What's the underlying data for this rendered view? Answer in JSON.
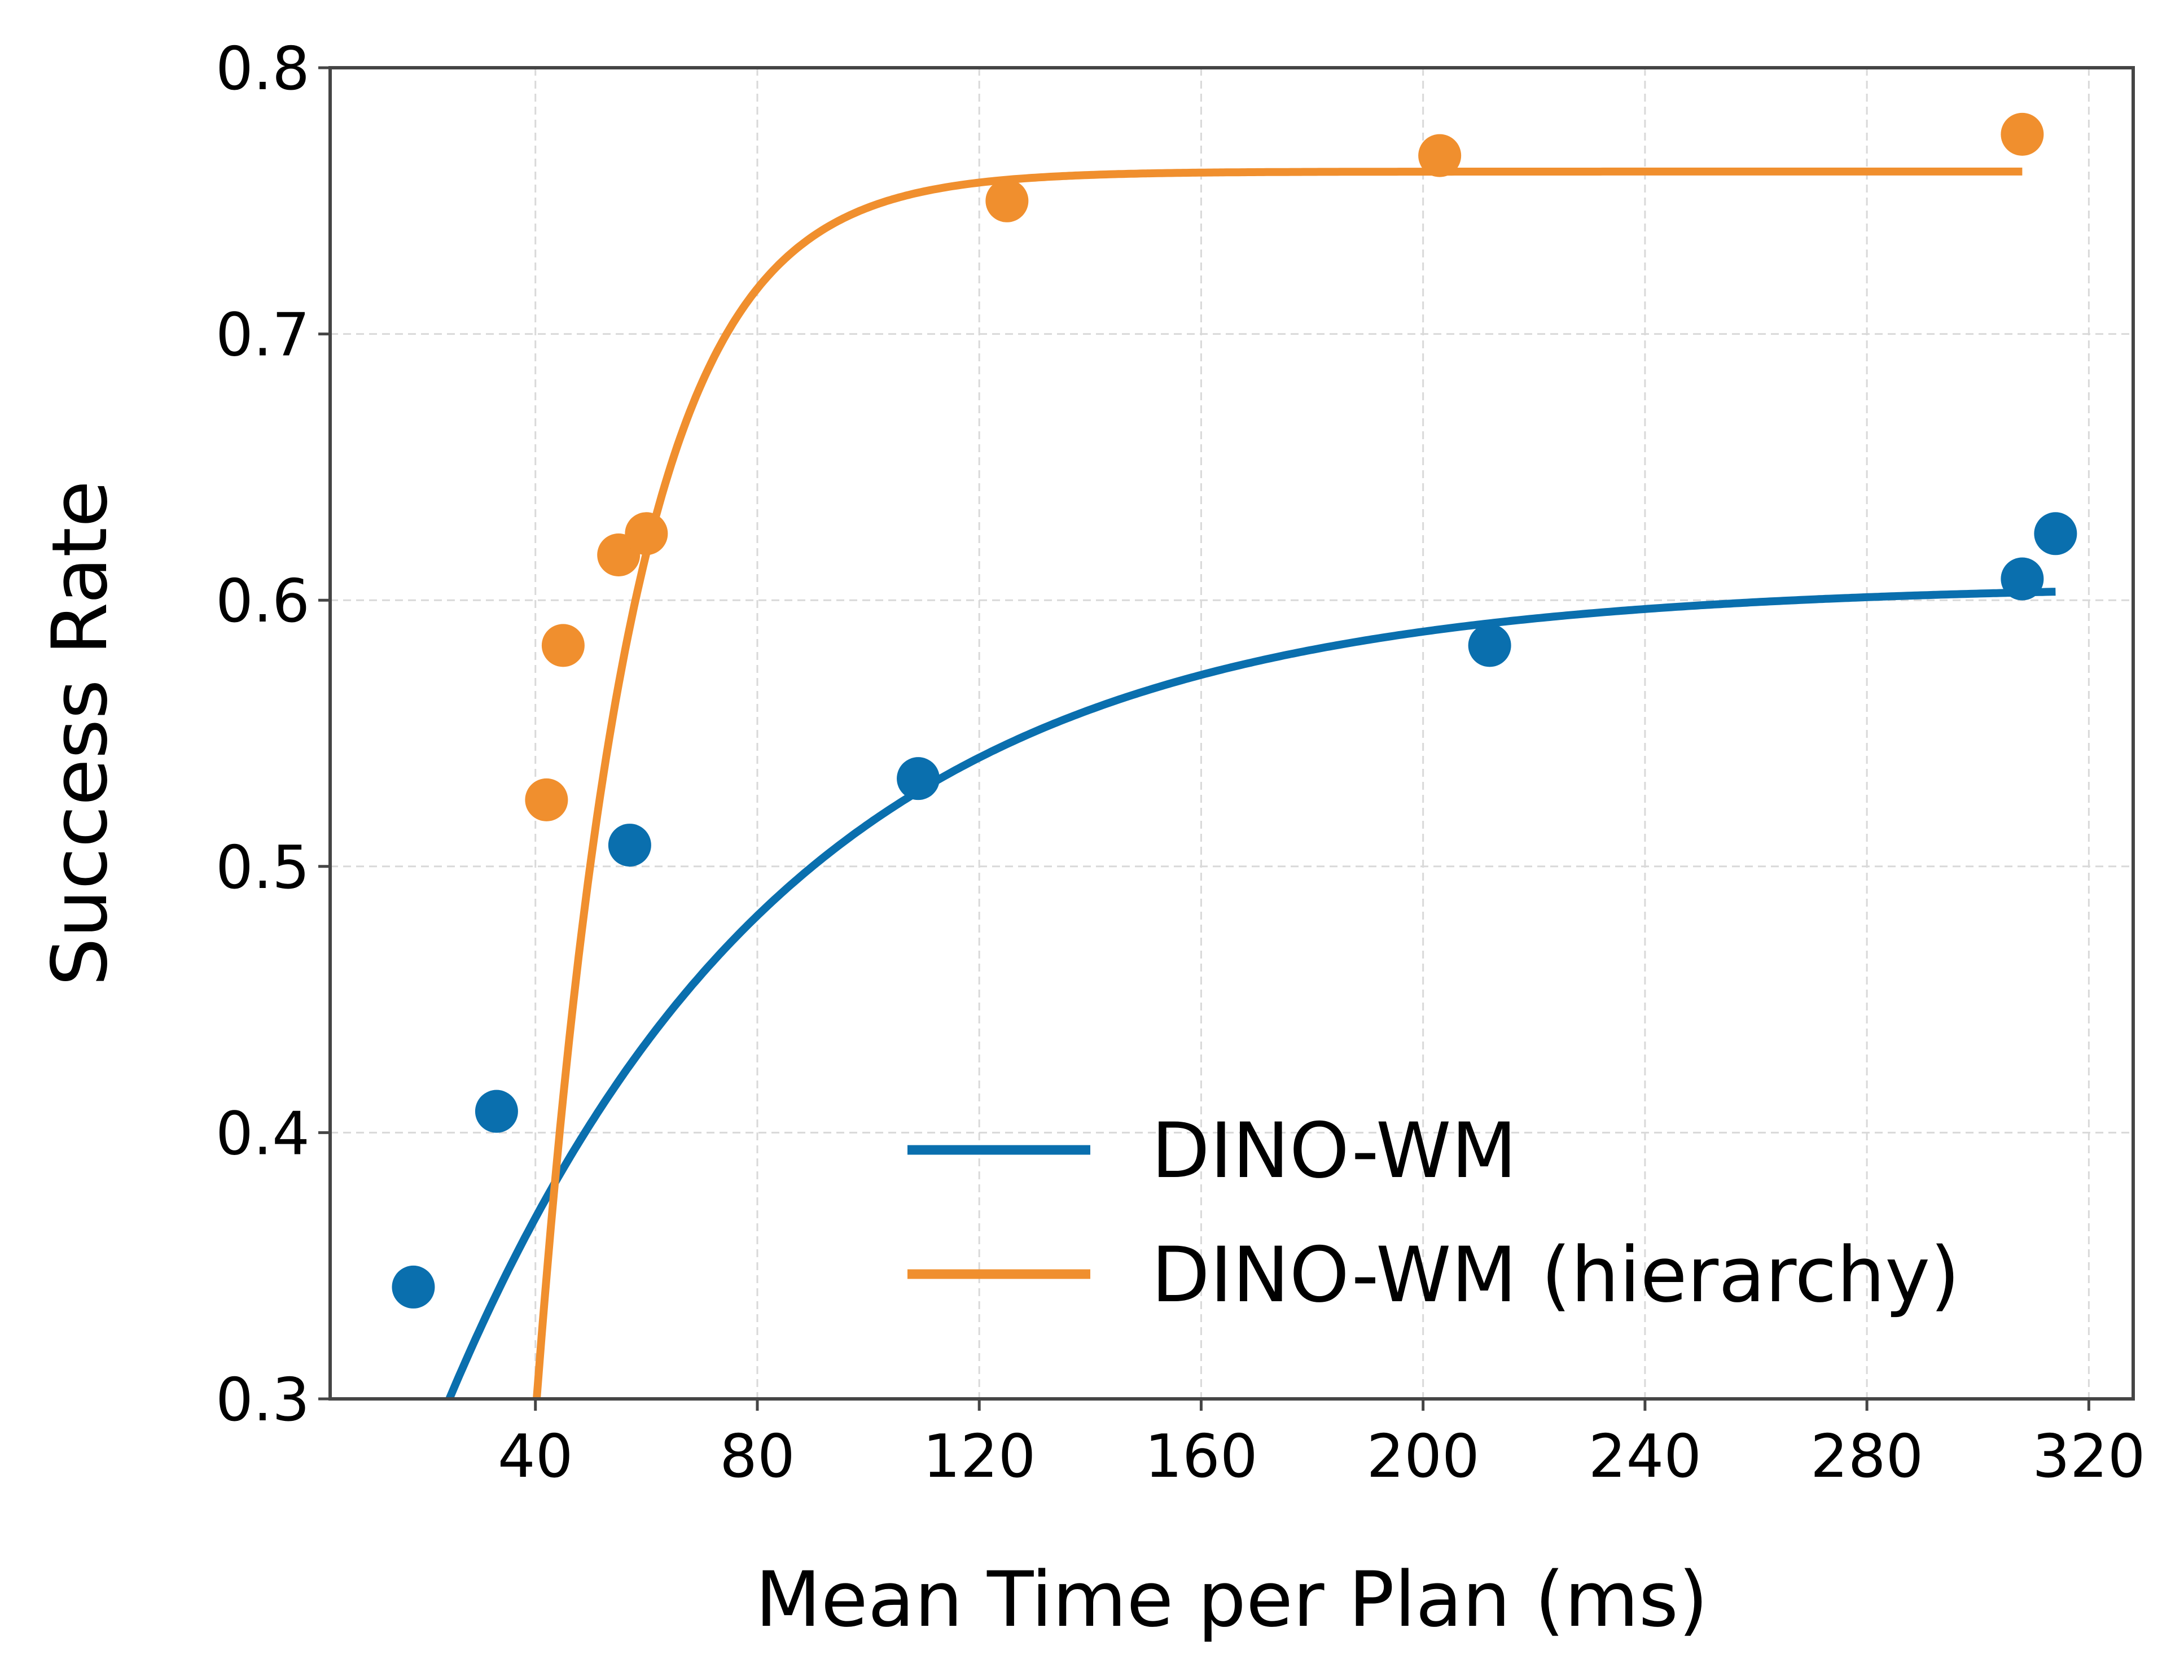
{
  "chart_data": {
    "type": "scatter",
    "title": "",
    "xlabel": "Mean Time per Plan (ms)",
    "ylabel": "Success Rate",
    "xlim": [
      3,
      328
    ],
    "ylim": [
      0.3,
      0.8
    ],
    "xticks": [
      40,
      80,
      120,
      160,
      200,
      240,
      280,
      320
    ],
    "xtick_labels": [
      "40",
      "80",
      "120",
      "160",
      "200",
      "240",
      "280",
      "320"
    ],
    "yticks": [
      0.3,
      0.4,
      0.5,
      0.6,
      0.7,
      0.8
    ],
    "ytick_labels": [
      "0.3",
      "0.4",
      "0.5",
      "0.6",
      "0.7",
      "0.8"
    ],
    "grid": true,
    "legend_position": "lower-right",
    "series": [
      {
        "name": "DINO-WM",
        "color": "#0a6fae",
        "points": [
          {
            "x": 18,
            "y": 0.342
          },
          {
            "x": 33,
            "y": 0.408
          },
          {
            "x": 57,
            "y": 0.508
          },
          {
            "x": 109,
            "y": 0.533
          },
          {
            "x": 212,
            "y": 0.583
          },
          {
            "x": 308,
            "y": 0.608
          },
          {
            "x": 314,
            "y": 0.625
          }
        ],
        "fit": {
          "model": "exponential-saturation",
          "a": 0.606,
          "b": 0.455,
          "c": 0.0162,
          "x_start": 18,
          "x_end": 314
        }
      },
      {
        "name": "DINO-WM (hierarchy)",
        "color": "#f08f2e",
        "points": [
          {
            "x": 42,
            "y": 0.525
          },
          {
            "x": 45,
            "y": 0.583
          },
          {
            "x": 55,
            "y": 0.617
          },
          {
            "x": 60,
            "y": 0.625
          },
          {
            "x": 125,
            "y": 0.75
          },
          {
            "x": 203,
            "y": 0.767
          },
          {
            "x": 308,
            "y": 0.775
          }
        ],
        "fit": {
          "model": "exponential-saturation",
          "a": 0.761,
          "b": 4.97,
          "c": 0.0591,
          "x_start": 30,
          "x_end": 308
        }
      }
    ]
  }
}
